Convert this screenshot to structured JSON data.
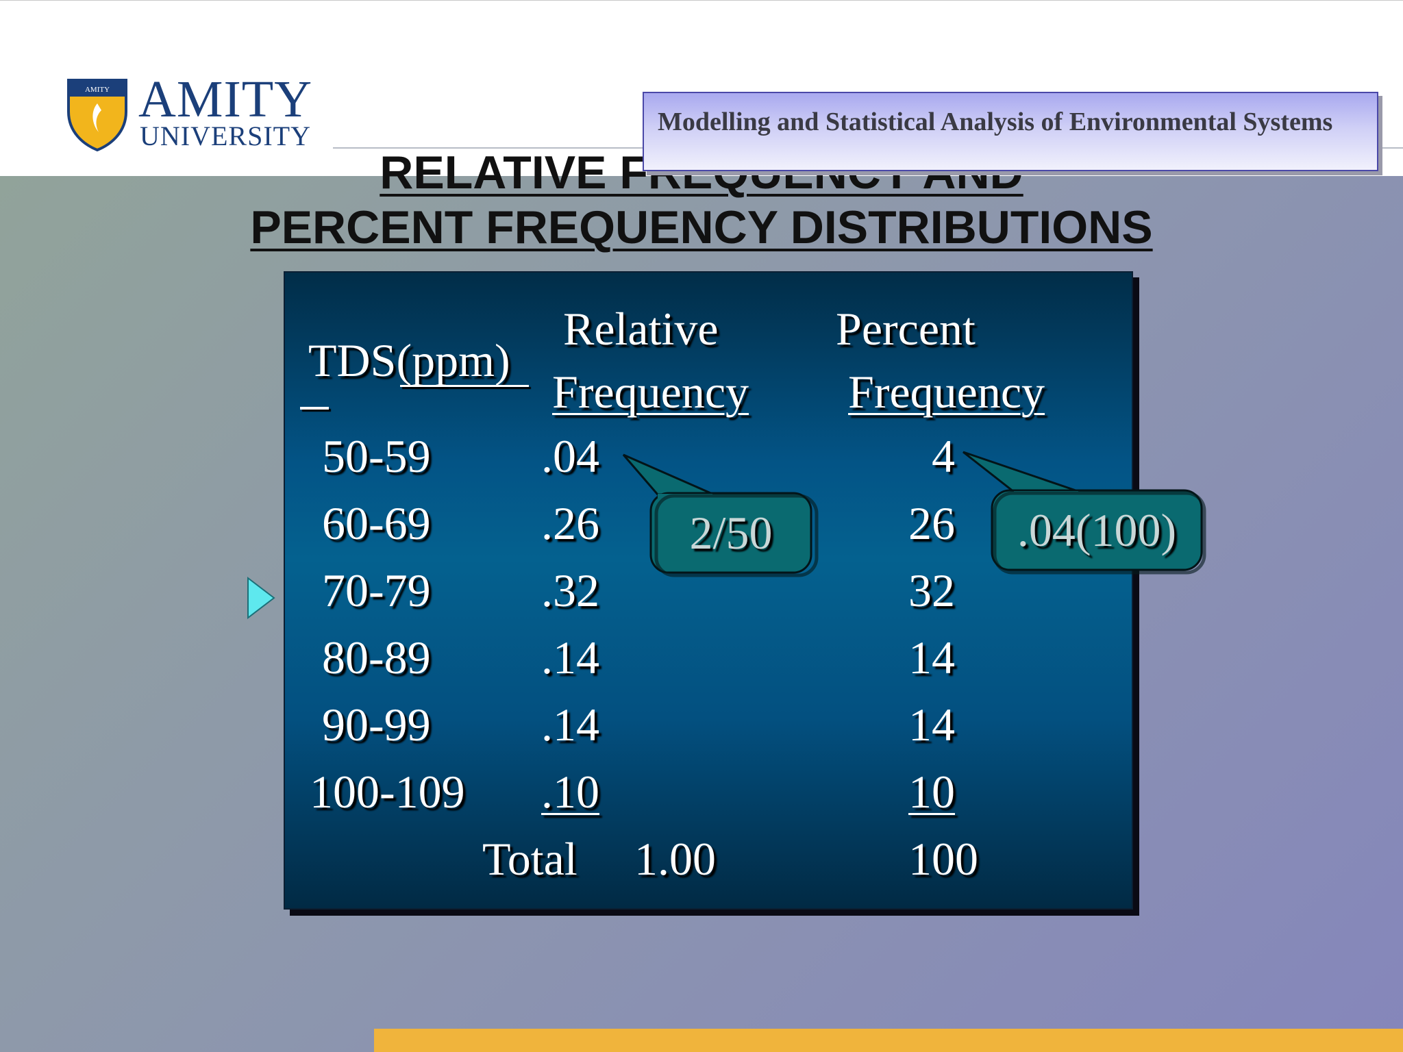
{
  "header": {
    "logo_text": "AMITY",
    "logo_subtext": "UNIVERSITY",
    "logo_shield_text": "AMITY UNIVERSITY",
    "course_title": "Modelling and Statistical Analysis of Environmental Systems"
  },
  "slide": {
    "title_line1": "RELATIVE FREQUENCY AND",
    "title_line2": "PERCENT FREQUENCY DISTRIBUTIONS"
  },
  "table": {
    "col1_header": "TDS(ppm)",
    "col2_header_line1": "Relative",
    "col2_header_line2": "Frequency",
    "col3_header_line1": "Percent",
    "col3_header_line2": "Frequency",
    "rows": [
      {
        "range": "50-59",
        "relative": ".04",
        "percent": "4"
      },
      {
        "range": "60-69",
        "relative": ".26",
        "percent": "26"
      },
      {
        "range": "70-79",
        "relative": ".32",
        "percent": "32"
      },
      {
        "range": "80-89",
        "relative": ".14",
        "percent": "14"
      },
      {
        "range": "90-99",
        "relative": ".14",
        "percent": "14"
      },
      {
        "range": "100-109",
        "relative": ".10",
        "percent": "10"
      }
    ],
    "total_label": "Total",
    "total_relative": "1.00",
    "total_percent": "100"
  },
  "callouts": {
    "relative_calc": "2/50",
    "percent_calc": ".04(100)"
  },
  "colors": {
    "panel": "#035486",
    "callout_fill": "#0a6a70",
    "accent_bar": "#f0b43c",
    "play_icon": "#5ee8ee"
  },
  "icons": {
    "play": "play-triangle-icon",
    "shield": "amity-shield-icon"
  }
}
